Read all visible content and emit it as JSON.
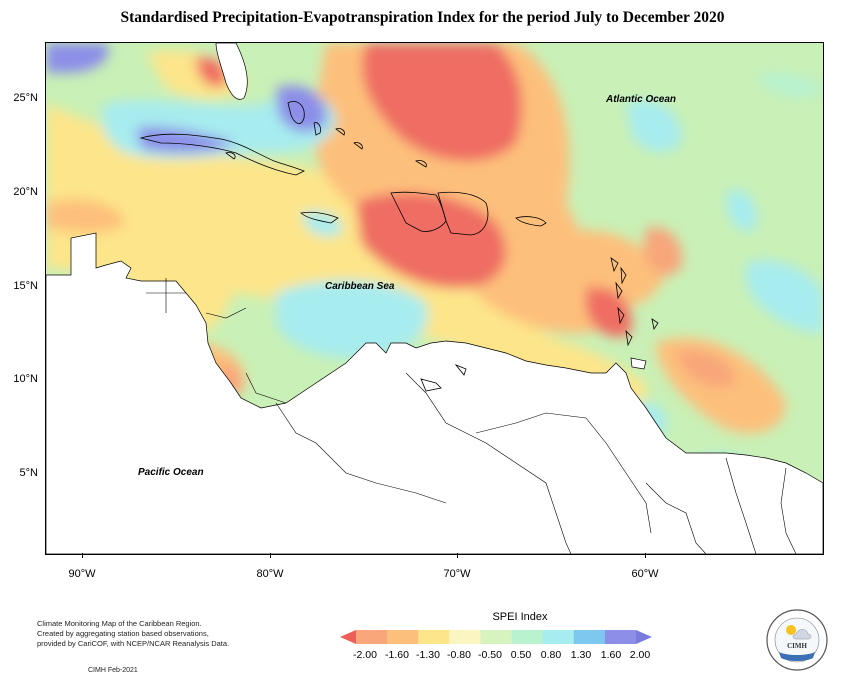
{
  "title": "Standardised Precipitation-Evapotranspiration Index for the period July to December 2020",
  "map": {
    "latitude_labels": [
      "25°N",
      "20°N",
      "15°N",
      "10°N",
      "5°N"
    ],
    "longitude_labels": [
      "90°W",
      "80°W",
      "70°W",
      "60°W"
    ],
    "regions": {
      "atlantic": "Atlantic Ocean",
      "caribbean": "Caribbean Sea",
      "pacific": "Pacific Ocean"
    }
  },
  "footer": {
    "line1": "Climate Monitoring Map of the Caribbean Region.",
    "line2": "Created by aggregating station based observations,",
    "line3": "provided by CariCOF, with NCEP/NCAR Reanalysis Data.",
    "credit": "CIMH Feb-2021"
  },
  "legend": {
    "title": "SPEI Index",
    "labels": [
      "-2.00",
      "-1.60",
      "-1.30",
      "-0.80",
      "-0.50",
      "0.50",
      "0.80",
      "1.30",
      "1.60",
      "2.00"
    ],
    "colors": [
      "#ef5f5a",
      "#f8a67a",
      "#fdc07c",
      "#fde58a",
      "#fbf5c2",
      "#d7f4be",
      "#b9f2cf",
      "#a7ecef",
      "#7cc8ef",
      "#8c8ee8",
      "#7b7bdf"
    ]
  },
  "logo": {
    "text": "CIMH"
  }
}
